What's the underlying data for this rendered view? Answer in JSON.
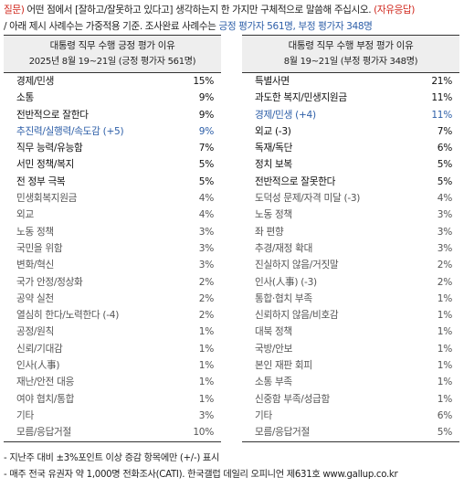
{
  "question": {
    "tag": "질문)",
    "main": " 어떤 점에서 [잘하고/잘못하고 있다고] 생각하는지 한 가지만 구체적으로 말씀해 주십시오.",
    "answer_type": "(자유응답)",
    "line2_a": "/ 아래 제시 사례수는 가중적용 기준. 조사완료 사례수는 ",
    "line2_b": "긍정 평가자 561명, 부정 평가자 348명"
  },
  "left": {
    "title": "대통령 직무 수행 긍정 평가 이유",
    "subtitle": "2025년 8월 19~21일 (긍정 평가자 561명)",
    "items": [
      {
        "label": "경제/민생",
        "value": "15%"
      },
      {
        "label": "소통",
        "value": "9%"
      },
      {
        "label": "전반적으로 잘한다",
        "value": "9%"
      },
      {
        "label": "추진력/실행력/속도감 (+5)",
        "value": "9%"
      },
      {
        "label": "직무 능력/유능함",
        "value": "7%"
      },
      {
        "label": "서민 정책/복지",
        "value": "5%"
      },
      {
        "label": "전 정부 극복",
        "value": "5%"
      },
      {
        "label": "민생회복지원금",
        "value": "4%"
      },
      {
        "label": "외교",
        "value": "4%"
      },
      {
        "label": "노동 정책",
        "value": "3%"
      },
      {
        "label": "국민을 위함",
        "value": "3%"
      },
      {
        "label": "변화/혁신",
        "value": "3%"
      },
      {
        "label": "국가 안정/정상화",
        "value": "2%"
      },
      {
        "label": "공약 실천",
        "value": "2%"
      },
      {
        "label": "열심히 한다/노력한다 (-4)",
        "value": "2%"
      },
      {
        "label": "공정/원칙",
        "value": "1%"
      },
      {
        "label": "신뢰/기대감",
        "value": "1%"
      },
      {
        "label": "인사(人事)",
        "value": "1%"
      },
      {
        "label": "재난/안전 대응",
        "value": "1%"
      },
      {
        "label": "여야 협치/통합",
        "value": "1%"
      },
      {
        "label": "기타",
        "value": "3%"
      },
      {
        "label": "모름/응답거절",
        "value": "10%"
      }
    ]
  },
  "right": {
    "title": "대통령 직무 수행 부정 평가 이유",
    "subtitle": "8월 19~21일 (부정 평가자 348명)",
    "items": [
      {
        "label": "특별사면",
        "value": "21%"
      },
      {
        "label": "과도한 복지/민생지원금",
        "value": "11%"
      },
      {
        "label": "경제/민생 (+4)",
        "value": "11%"
      },
      {
        "label": "외교 (-3)",
        "value": "7%"
      },
      {
        "label": "독재/독단",
        "value": "6%"
      },
      {
        "label": "정치 보복",
        "value": "5%"
      },
      {
        "label": "전반적으로 잘못한다",
        "value": "5%"
      },
      {
        "label": "도덕성 문제/자격 미달 (-3)",
        "value": "4%"
      },
      {
        "label": "노동 정책",
        "value": "3%"
      },
      {
        "label": "좌 편향",
        "value": "3%"
      },
      {
        "label": "추경/재정 확대",
        "value": "3%"
      },
      {
        "label": "진실하지 않음/거짓말",
        "value": "2%"
      },
      {
        "label": "인사(人事) (-3)",
        "value": "2%"
      },
      {
        "label": "통합·협치 부족",
        "value": "1%"
      },
      {
        "label": "신뢰하지 않음/비호감",
        "value": "1%"
      },
      {
        "label": "대북 정책",
        "value": "1%"
      },
      {
        "label": "국방/안보",
        "value": "1%"
      },
      {
        "label": "본인 재판 회피",
        "value": "1%"
      },
      {
        "label": "소통 부족",
        "value": "1%"
      },
      {
        "label": "신중함 부족/성급함",
        "value": "1%"
      },
      {
        "label": "기타",
        "value": "6%"
      },
      {
        "label": "모름/응답거절",
        "value": "5%"
      }
    ]
  },
  "footnotes": {
    "note1": "- 지난주 대비 ±3%포인트 이상 증감 항목에만 (+/-) 표시",
    "note2": "- 매주 전국 유권자 약 1,000명 전화조사(CATI). 한국갤럽 데일리 오피니언 제631호 www.gallup.co.kr"
  }
}
